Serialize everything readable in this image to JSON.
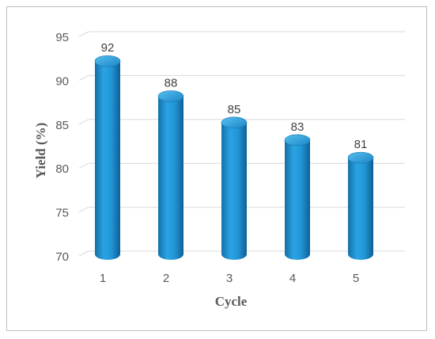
{
  "chart_data": {
    "type": "bar",
    "title": "",
    "xlabel": "Cycle",
    "ylabel": "Yield (%)",
    "categories": [
      "1",
      "2",
      "3",
      "4",
      "5"
    ],
    "values": [
      92,
      88,
      85,
      83,
      81
    ],
    "data_labels": [
      "92",
      "88",
      "85",
      "83",
      "81"
    ],
    "ylim": [
      70,
      95
    ],
    "yticks": [
      70,
      75,
      80,
      85,
      90,
      95
    ],
    "ytick_labels": [
      "70",
      "75",
      "80",
      "85",
      "90",
      "95"
    ],
    "bar_shape": "cylinder",
    "bar_color": "#1f8fd0",
    "grid": "horizontal",
    "legend": "none"
  }
}
